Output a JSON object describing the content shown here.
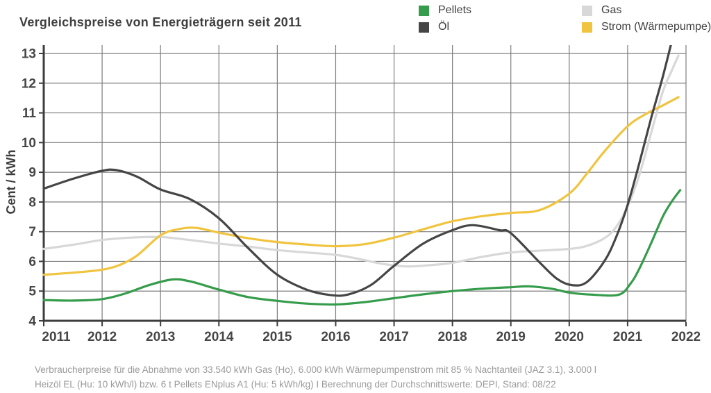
{
  "title": "Vergleichspreise von Energieträgern seit 2011",
  "y_axis_title": "Cent / kWh",
  "footer": {
    "line1": "Verbraucherpreise für die Abnahme von 33.540 kWh Gas (Ho), 6.000 kWh Wärmepumpenstrom mit 85 % Nachtanteil (JAZ 3.1), 3.000 l",
    "line2": "Heizöl EL (Hu: 10 kWh/l) bzw. 6 t Pellets ENplus A1 (Hu: 5 kWh/kg) I Berechnung der Durchschnittswerte: DEPI, Stand: 08/22"
  },
  "colors": {
    "axis": "#3d3d3d",
    "grid": "#7d7d7d",
    "tick_text": "#464646",
    "footer_text": "#9a9a9a"
  },
  "chart_data": {
    "type": "line",
    "title": "Vergleichspreise von Energieträgern seit 2011",
    "xlabel": "",
    "ylabel": "Cent / kWh",
    "xlim": [
      2011,
      2022
    ],
    "ylim": [
      4,
      13.3
    ],
    "x_ticks": [
      2011,
      2012,
      2013,
      2014,
      2015,
      2016,
      2017,
      2018,
      2019,
      2020,
      2021,
      2022
    ],
    "y_ticks": [
      4,
      5,
      6,
      7,
      8,
      9,
      10,
      11,
      12,
      13
    ],
    "grid": true,
    "legend_position": "top-right",
    "units": "Cent / kWh",
    "series": [
      {
        "name": "Pellets",
        "color": "#359c4b",
        "points": [
          [
            2011,
            4.7
          ],
          [
            2011.5,
            4.68
          ],
          [
            2012,
            4.73
          ],
          [
            2012.4,
            4.92
          ],
          [
            2012.8,
            5.2
          ],
          [
            2013.2,
            5.39
          ],
          [
            2013.5,
            5.33
          ],
          [
            2014,
            5.05
          ],
          [
            2014.5,
            4.8
          ],
          [
            2015,
            4.67
          ],
          [
            2015.5,
            4.58
          ],
          [
            2016,
            4.55
          ],
          [
            2016.5,
            4.63
          ],
          [
            2017,
            4.76
          ],
          [
            2017.5,
            4.89
          ],
          [
            2018,
            5.0
          ],
          [
            2018.5,
            5.08
          ],
          [
            2019,
            5.13
          ],
          [
            2019.3,
            5.16
          ],
          [
            2019.7,
            5.08
          ],
          [
            2020,
            4.95
          ],
          [
            2020.4,
            4.88
          ],
          [
            2020.85,
            4.88
          ],
          [
            2021.05,
            5.25
          ],
          [
            2021.2,
            5.75
          ],
          [
            2021.4,
            6.6
          ],
          [
            2021.6,
            7.5
          ],
          [
            2021.75,
            8.0
          ],
          [
            2021.9,
            8.4
          ]
        ]
      },
      {
        "name": "Öl",
        "color": "#454545",
        "points": [
          [
            2011,
            8.45
          ],
          [
            2011.5,
            8.78
          ],
          [
            2012,
            9.05
          ],
          [
            2012.25,
            9.07
          ],
          [
            2012.6,
            8.85
          ],
          [
            2013,
            8.42
          ],
          [
            2013.5,
            8.1
          ],
          [
            2014,
            7.45
          ],
          [
            2014.5,
            6.45
          ],
          [
            2015,
            5.55
          ],
          [
            2015.5,
            5.05
          ],
          [
            2015.9,
            4.87
          ],
          [
            2016.2,
            4.88
          ],
          [
            2016.6,
            5.2
          ],
          [
            2017,
            5.85
          ],
          [
            2017.5,
            6.6
          ],
          [
            2018,
            7.05
          ],
          [
            2018.35,
            7.22
          ],
          [
            2018.8,
            7.05
          ],
          [
            2019,
            6.95
          ],
          [
            2019.5,
            5.95
          ],
          [
            2019.8,
            5.4
          ],
          [
            2020.05,
            5.2
          ],
          [
            2020.3,
            5.3
          ],
          [
            2020.6,
            6.0
          ],
          [
            2020.8,
            6.8
          ],
          [
            2021,
            7.9
          ],
          [
            2021.2,
            9.3
          ],
          [
            2021.4,
            10.8
          ],
          [
            2021.6,
            12.2
          ],
          [
            2021.78,
            13.6
          ]
        ]
      },
      {
        "name": "Gas",
        "color": "#d8d8d8",
        "points": [
          [
            2011,
            6.42
          ],
          [
            2011.5,
            6.56
          ],
          [
            2012,
            6.72
          ],
          [
            2012.5,
            6.8
          ],
          [
            2013,
            6.82
          ],
          [
            2013.5,
            6.72
          ],
          [
            2014,
            6.6
          ],
          [
            2014.5,
            6.5
          ],
          [
            2015,
            6.38
          ],
          [
            2015.5,
            6.3
          ],
          [
            2016,
            6.22
          ],
          [
            2016.4,
            6.08
          ],
          [
            2016.8,
            5.92
          ],
          [
            2017.2,
            5.83
          ],
          [
            2017.6,
            5.87
          ],
          [
            2018,
            5.95
          ],
          [
            2018.5,
            6.15
          ],
          [
            2019,
            6.3
          ],
          [
            2019.5,
            6.36
          ],
          [
            2020,
            6.42
          ],
          [
            2020.3,
            6.52
          ],
          [
            2020.6,
            6.78
          ],
          [
            2020.8,
            7.15
          ],
          [
            2021,
            7.85
          ],
          [
            2021.2,
            8.9
          ],
          [
            2021.4,
            10.3
          ],
          [
            2021.6,
            11.7
          ],
          [
            2021.75,
            12.4
          ],
          [
            2021.87,
            12.93
          ]
        ]
      },
      {
        "name": "Strom (Wärmepumpe)",
        "color": "#f0c43e",
        "points": [
          [
            2011,
            5.55
          ],
          [
            2011.5,
            5.62
          ],
          [
            2012,
            5.72
          ],
          [
            2012.3,
            5.88
          ],
          [
            2012.6,
            6.2
          ],
          [
            2013,
            6.88
          ],
          [
            2013.3,
            7.08
          ],
          [
            2013.6,
            7.13
          ],
          [
            2014,
            6.97
          ],
          [
            2014.5,
            6.78
          ],
          [
            2015,
            6.65
          ],
          [
            2015.5,
            6.57
          ],
          [
            2016,
            6.51
          ],
          [
            2016.5,
            6.58
          ],
          [
            2017,
            6.8
          ],
          [
            2017.5,
            7.08
          ],
          [
            2018,
            7.35
          ],
          [
            2018.5,
            7.52
          ],
          [
            2019,
            7.63
          ],
          [
            2019.5,
            7.73
          ],
          [
            2020,
            8.28
          ],
          [
            2020.3,
            8.95
          ],
          [
            2020.6,
            9.7
          ],
          [
            2021,
            10.55
          ],
          [
            2021.3,
            10.95
          ],
          [
            2021.6,
            11.25
          ],
          [
            2021.87,
            11.53
          ]
        ]
      }
    ]
  }
}
